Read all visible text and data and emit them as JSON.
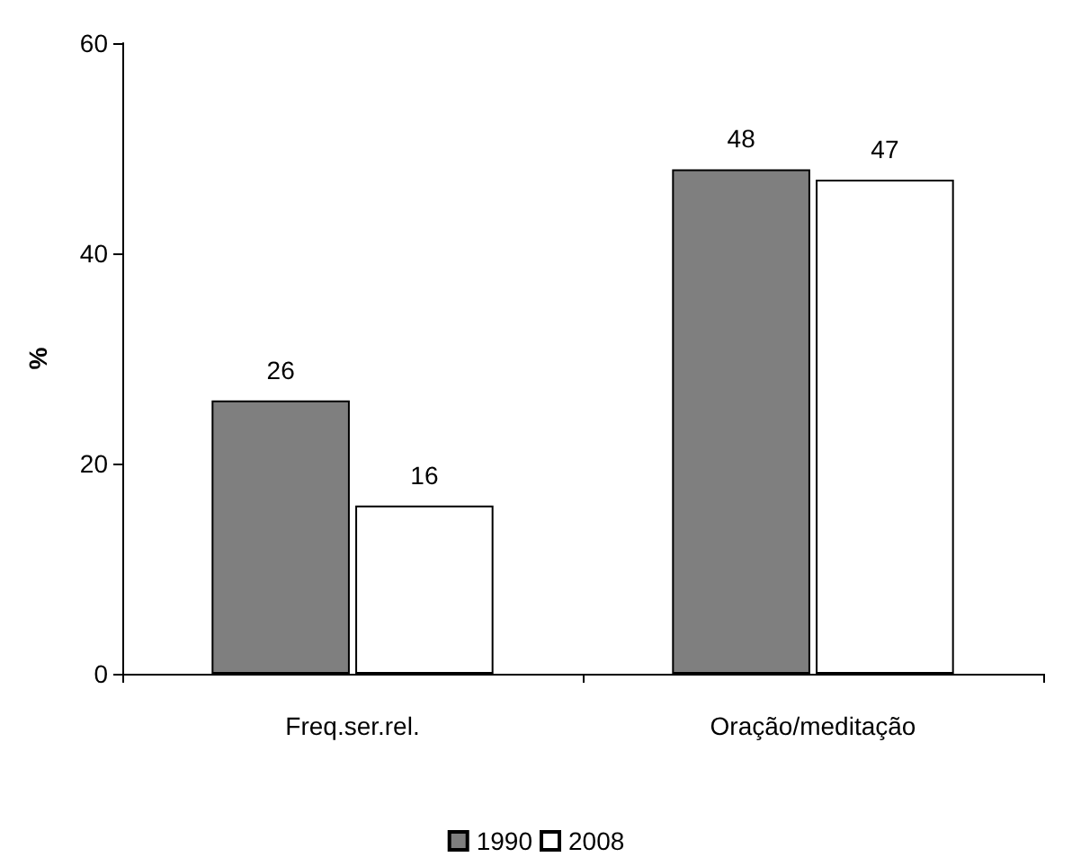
{
  "chart_data": {
    "type": "bar",
    "ylabel": "%",
    "categories": [
      "Freq.ser.rel.",
      "Oração/meditação"
    ],
    "series": [
      {
        "name": "1990",
        "color": "#7f7f7f",
        "values": [
          26,
          48
        ]
      },
      {
        "name": "2008",
        "color": "#ffffff",
        "values": [
          16,
          47
        ]
      }
    ],
    "ylim": [
      0,
      60
    ],
    "yticks": [
      0,
      20,
      40,
      60
    ],
    "grid": false,
    "legend": "bottom",
    "data_labels": true
  }
}
